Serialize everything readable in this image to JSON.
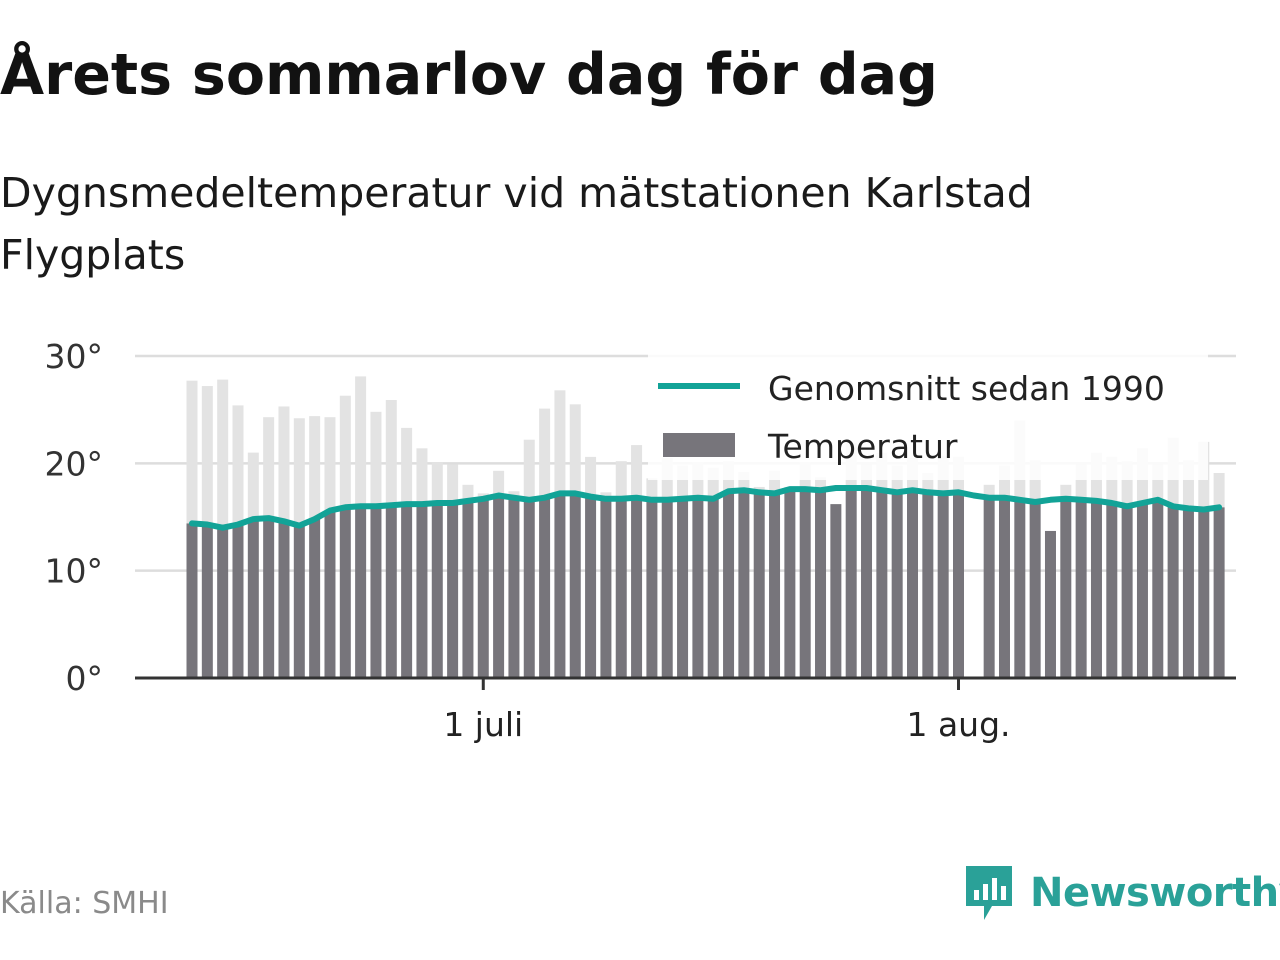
{
  "header": {
    "title": "Årets sommarlov dag för dag",
    "subtitle": "Dygnsmedeltemperatur vid mätstationen Karlstad Flygplats"
  },
  "footer": {
    "source": "Källa: SMHI",
    "brand": "Newsworthy"
  },
  "colors": {
    "bar": "#77757b",
    "bar_above_avg": "#e3e3e3",
    "average_line": "#12a397",
    "grid": "#dddddd",
    "brand": "#2aa198"
  },
  "chart_data": {
    "type": "bar",
    "y_tick_labels": [
      "0°",
      "10°",
      "20°",
      "30°"
    ],
    "y_ticks": [
      0,
      10,
      20,
      30
    ],
    "ylim": [
      0,
      30
    ],
    "x_tick_labels": [
      {
        "label": "1 juli",
        "date": "07-01"
      },
      {
        "label": "1 aug.",
        "date": "08-01"
      }
    ],
    "x_start": "06-12",
    "grid": true,
    "legend_placement": "top-right",
    "legend": {
      "line_label": "Genomsnitt sedan 1990",
      "bar_label": "Temperatur"
    },
    "dates": [
      "06-12",
      "06-13",
      "06-14",
      "06-15",
      "06-16",
      "06-17",
      "06-18",
      "06-19",
      "06-20",
      "06-21",
      "06-22",
      "06-23",
      "06-24",
      "06-25",
      "06-26",
      "06-27",
      "06-28",
      "06-29",
      "06-30",
      "07-01",
      "07-02",
      "07-03",
      "07-04",
      "07-05",
      "07-06",
      "07-07",
      "07-08",
      "07-09",
      "07-10",
      "07-11",
      "07-12",
      "07-13",
      "07-14",
      "07-15",
      "07-16",
      "07-17",
      "07-18",
      "07-19",
      "07-20",
      "07-21",
      "07-22",
      "07-23",
      "07-24",
      "07-25",
      "07-26",
      "07-27",
      "07-28",
      "07-29",
      "07-30",
      "07-31",
      "08-01",
      "08-02",
      "08-03",
      "08-04",
      "08-05",
      "08-06",
      "08-07",
      "08-08",
      "08-09",
      "08-10",
      "08-11",
      "08-12",
      "08-13",
      "08-14",
      "08-15",
      "08-16",
      "08-17",
      "08-18"
    ],
    "series": [
      {
        "name": "Temperatur",
        "values": [
          27.7,
          27.2,
          27.8,
          25.4,
          21.0,
          24.3,
          25.3,
          24.2,
          24.4,
          24.3,
          26.3,
          28.1,
          24.8,
          25.9,
          23.3,
          21.4,
          20.1,
          19.9,
          18.0,
          17.2,
          19.3,
          17.4,
          22.2,
          25.1,
          26.8,
          25.5,
          20.6,
          17.3,
          20.2,
          21.7,
          18.6,
          20.5,
          19.8,
          20.1,
          19.6,
          20.2,
          19.2,
          17.8,
          19.3,
          17.8,
          20.1,
          18.7,
          16.2,
          21.9,
          19.9,
          21.0,
          19.8,
          20.5,
          19.1,
          20.7,
          20.6,
          null,
          18.0,
          19.8,
          24.0,
          20.3,
          13.7,
          18.0,
          19.9,
          21.0,
          20.6,
          20.2,
          21.4,
          19.9,
          22.4,
          20.3,
          22.0,
          19.1
        ]
      },
      {
        "name": "Genomsnitt sedan 1990",
        "values": [
          14.4,
          14.3,
          14.0,
          14.3,
          14.8,
          14.9,
          14.6,
          14.2,
          14.8,
          15.6,
          15.9,
          16.0,
          16.0,
          16.1,
          16.2,
          16.2,
          16.3,
          16.3,
          16.5,
          16.7,
          17.0,
          16.8,
          16.6,
          16.8,
          17.2,
          17.2,
          16.9,
          16.7,
          16.7,
          16.8,
          16.6,
          16.6,
          16.7,
          16.8,
          16.7,
          17.4,
          17.5,
          17.3,
          17.2,
          17.6,
          17.6,
          17.5,
          17.7,
          17.7,
          17.7,
          17.5,
          17.3,
          17.5,
          17.3,
          17.2,
          17.3,
          17.0,
          16.8,
          16.8,
          16.6,
          16.4,
          16.6,
          16.7,
          16.6,
          16.5,
          16.3,
          16.0,
          16.3,
          16.6,
          16.0,
          15.8,
          15.7,
          15.9
        ]
      }
    ]
  }
}
